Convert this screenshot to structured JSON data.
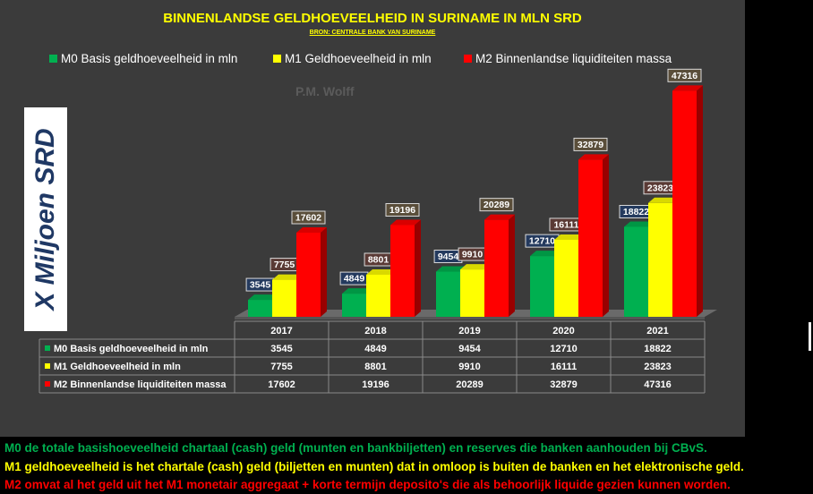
{
  "chart_data": {
    "type": "bar",
    "title": "BINNENLANDSE GELDHOEVEELHEID  IN SURINAME IN MLN SRD",
    "subtitle": "BRON: CENTRALE BANK VAN SURINAME",
    "watermark": "P.M. Wolff",
    "ylabel": "X Miljoen SRD",
    "categories": [
      "2017",
      "2018",
      "2019",
      "2020",
      "2021"
    ],
    "ylim": [
      0,
      50000
    ],
    "series": [
      {
        "name": "M0 Basis geldhoeveelheid in mln",
        "color": "#00b050",
        "values": [
          3545,
          4849,
          9454,
          12710,
          18822
        ]
      },
      {
        "name": "M1 Geldhoeveelheid in mln",
        "color": "#ffff00",
        "values": [
          7755,
          8801,
          9910,
          16111,
          23823
        ]
      },
      {
        "name": "M2 Binnenlandse liquiditeiten massa",
        "color": "#ff0000",
        "values": [
          17602,
          19196,
          20289,
          32879,
          47316
        ]
      }
    ],
    "legend_placement": "top",
    "data_table": true
  },
  "footnotes": {
    "m0": "M0 de totale basishoeveelheid chartaal (cash) geld (munten en bankbiljetten) en reserves die banken aanhouden bij CBvS.",
    "m1": "M1 geldhoeveelheid is het chartale (cash) geld (biljetten en munten) dat in omloop is buiten de banken en het elektronische geld.",
    "m2": "M2 omvat al het geld uit het M1 monetair aggregaat + korte termijn deposito's die als behoorlijk liquide gezien kunnen worden."
  }
}
